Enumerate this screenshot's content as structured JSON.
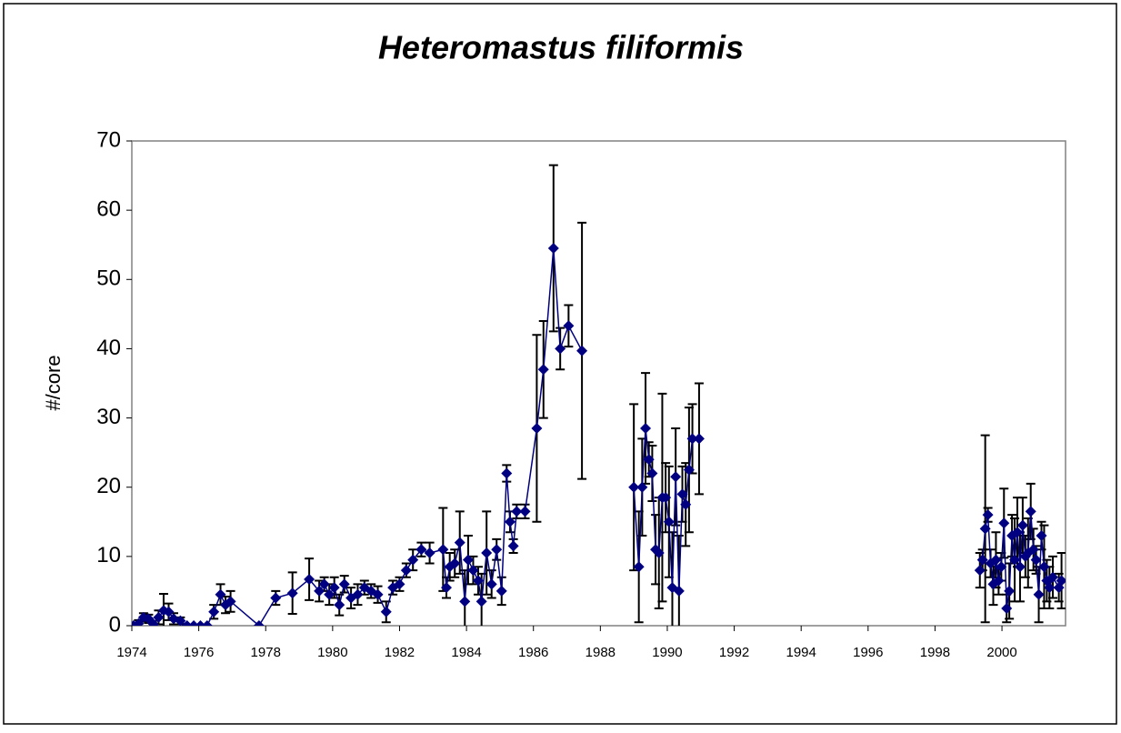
{
  "chart_data": {
    "type": "line",
    "title": "Heteromastus filiformis",
    "y_label": "#/core",
    "xlim": [
      1974,
      2001.9
    ],
    "xticks": [
      1974,
      1976,
      1978,
      1980,
      1982,
      1984,
      1986,
      1988,
      1990,
      1992,
      1994,
      1996,
      1998,
      2000
    ],
    "ylim": [
      0,
      70
    ],
    "yticks": [
      0,
      10,
      20,
      30,
      40,
      50,
      60,
      70
    ],
    "grid": false,
    "series": [
      {
        "color": "#000080",
        "x": [
          1974.05,
          1974.2,
          1974.35,
          1974.5,
          1974.65,
          1974.8,
          1974.95,
          1975.1,
          1975.25,
          1975.45,
          1975.65,
          1975.85,
          1976.05,
          1976.25,
          1976.45,
          1976.65,
          1976.8,
          1976.95,
          1977.8,
          1978.3,
          1978.8,
          1979.3,
          1979.6,
          1979.75,
          1979.9,
          1980.05,
          1980.2,
          1980.35,
          1980.55,
          1980.75,
          1980.95,
          1981.15,
          1981.35,
          1981.6,
          1981.8,
          1982.0,
          1982.2,
          1982.4,
          1982.65,
          1982.9,
          1983.3,
          1983.4,
          1983.5,
          1983.65,
          1983.8,
          1983.95,
          1984.05,
          1984.2,
          1984.35,
          1984.45,
          1984.6,
          1984.75,
          1984.9,
          1985.05,
          1985.2,
          1985.3,
          1985.4,
          1985.5,
          1985.75,
          1986.1,
          1986.3,
          1986.6,
          1986.8,
          1987.05,
          1987.45,
          null,
          1989.0,
          1989.15,
          1989.25,
          1989.35,
          1989.45,
          1989.55,
          1989.65,
          1989.75,
          1989.85,
          1989.95,
          1990.05,
          1990.15,
          1990.25,
          1990.35,
          1990.45,
          1990.55,
          1990.65,
          1990.75,
          1990.95,
          null,
          1999.34,
          1999.42,
          1999.5,
          1999.58,
          1999.66,
          1999.74,
          1999.82,
          1999.9,
          1999.98,
          2000.06,
          2000.14,
          2000.22,
          2000.3,
          2000.38,
          2000.46,
          2000.54,
          2000.62,
          2000.7,
          2000.78,
          2000.86,
          2000.94,
          2001.02,
          2001.1,
          2001.18,
          2001.26,
          2001.34,
          2001.42,
          2001.52,
          2001.7,
          2001.78
        ],
        "values": [
          0,
          0.3,
          1.2,
          1,
          0.2,
          1.2,
          2.2,
          2,
          1,
          0.7,
          0,
          0,
          0,
          0,
          2,
          4.5,
          3,
          3.5,
          0,
          4,
          4.7,
          6.7,
          5,
          6,
          4.5,
          5.5,
          3,
          6,
          4,
          4.5,
          5.5,
          5,
          4.5,
          2,
          5.5,
          6,
          8,
          9.5,
          11,
          10.5,
          11,
          5.5,
          8.5,
          9,
          12,
          3.5,
          9.5,
          8,
          6.5,
          3.5,
          10.5,
          6,
          11,
          5,
          22,
          15,
          11.5,
          16.5,
          16.5,
          28.5,
          37,
          54.5,
          40,
          43.3,
          39.7,
          null,
          20,
          8.5,
          20,
          28.5,
          24,
          22,
          11,
          10.5,
          18.5,
          18.5,
          15,
          5.5,
          21.5,
          5,
          19,
          17.5,
          22.5,
          27,
          27,
          null,
          8,
          9.5,
          14,
          16,
          9,
          6,
          9.5,
          6.5,
          8.5,
          14.8,
          2.5,
          5,
          13,
          9.5,
          13.5,
          8.5,
          14.5,
          10,
          10.5,
          16.5,
          11,
          9.5,
          4.5,
          13,
          8.5,
          6.5,
          5.5,
          7,
          5.5,
          6.5
        ],
        "errors": [
          0,
          0.5,
          0.6,
          0.6,
          0.5,
          1,
          2.4,
          1.2,
          0.8,
          0.5,
          0,
          0,
          0,
          0,
          1,
          1.5,
          1.2,
          1.5,
          0,
          1,
          3,
          3,
          1.5,
          1,
          1.5,
          1.5,
          1.5,
          1.2,
          1.5,
          1.5,
          1,
          1,
          1.2,
          1.5,
          1,
          1,
          1,
          1.5,
          1,
          1.5,
          6,
          1.5,
          2,
          2,
          4.5,
          4.5,
          3.5,
          2,
          2,
          4,
          6,
          2,
          1.5,
          2,
          1.2,
          1.5,
          1,
          1,
          1,
          13.5,
          7,
          12,
          3,
          3,
          18.5,
          null,
          12,
          8,
          7,
          8,
          2.5,
          4,
          5,
          8,
          15,
          5,
          8,
          8,
          7,
          8,
          4,
          6,
          9,
          5,
          8,
          null,
          2.5,
          1.5,
          13.5,
          1,
          2,
          3,
          4,
          2,
          2,
          5,
          2,
          4,
          3,
          6,
          5,
          5,
          4,
          3,
          5,
          4,
          3,
          2,
          4,
          2,
          6,
          3,
          3,
          3,
          2,
          4
        ]
      }
    ]
  }
}
